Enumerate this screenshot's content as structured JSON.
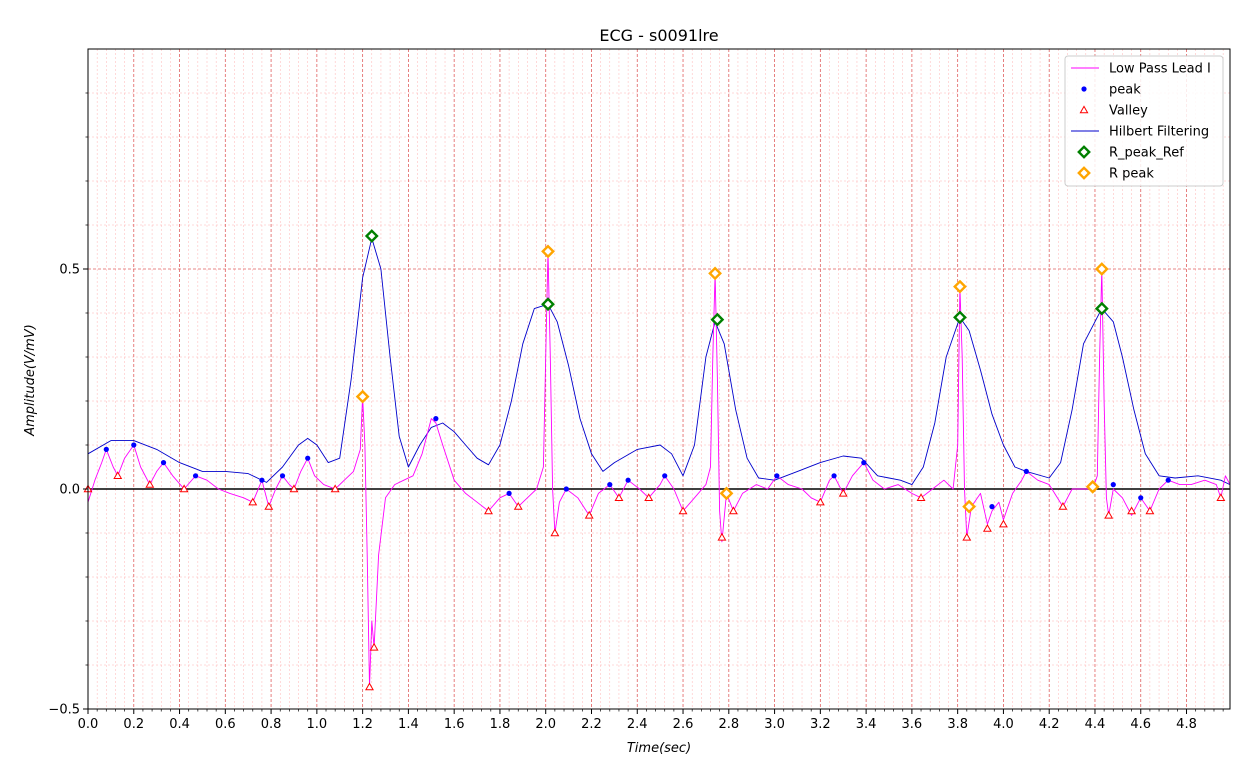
{
  "chart_data": {
    "type": "line",
    "title": "ECG - s0091lre",
    "xlabel": "Time(sec)",
    "ylabel": "Amplitude(V/mV)",
    "xlim": [
      0,
      4.99
    ],
    "ylim": [
      -0.5,
      1.0
    ],
    "x_ticks": [
      0.0,
      0.2,
      0.4,
      0.6,
      0.8,
      1.0,
      1.2,
      1.4,
      1.6,
      1.8,
      2.0,
      2.2,
      2.4,
      2.6,
      2.8,
      3.0,
      3.2,
      3.4,
      3.6,
      3.8,
      4.0,
      4.2,
      4.4,
      4.6,
      4.8
    ],
    "x_tick_labels": [
      "0.0",
      "0.2",
      "0.4",
      "0.6",
      "0.8",
      "1.0",
      "1.2",
      "1.4",
      "1.6",
      "1.8",
      "2.0",
      "2.2",
      "2.4",
      "2.6",
      "2.8",
      "3.0",
      "3.2",
      "3.4",
      "3.6",
      "3.8",
      "4.0",
      "4.2",
      "4.4",
      "4.6",
      "4.8"
    ],
    "y_ticks": [
      -0.5,
      0.0,
      0.5
    ],
    "y_tick_labels": [
      "−0.5",
      "0.0",
      "0.5"
    ],
    "grid": true,
    "zero_line": true,
    "legend_position": "top-right",
    "series": [
      {
        "name": "Low Pass Lead I",
        "kind": "line",
        "color": "#ff00ff",
        "points": [
          [
            0.0,
            -0.03
          ],
          [
            0.03,
            0.02
          ],
          [
            0.06,
            0.06
          ],
          [
            0.08,
            0.09
          ],
          [
            0.11,
            0.05
          ],
          [
            0.13,
            0.03
          ],
          [
            0.16,
            0.07
          ],
          [
            0.2,
            0.1
          ],
          [
            0.23,
            0.05
          ],
          [
            0.27,
            0.01
          ],
          [
            0.3,
            0.04
          ],
          [
            0.33,
            0.06
          ],
          [
            0.37,
            0.03
          ],
          [
            0.42,
            0.0
          ],
          [
            0.47,
            0.03
          ],
          [
            0.52,
            0.02
          ],
          [
            0.57,
            0.0
          ],
          [
            0.62,
            -0.01
          ],
          [
            0.68,
            -0.02
          ],
          [
            0.72,
            -0.03
          ],
          [
            0.76,
            0.02
          ],
          [
            0.79,
            -0.04
          ],
          [
            0.82,
            0.0
          ],
          [
            0.85,
            0.03
          ],
          [
            0.88,
            0.01
          ],
          [
            0.9,
            0.0
          ],
          [
            0.93,
            0.04
          ],
          [
            0.96,
            0.07
          ],
          [
            0.99,
            0.03
          ],
          [
            1.03,
            0.01
          ],
          [
            1.08,
            0.0
          ],
          [
            1.12,
            0.02
          ],
          [
            1.16,
            0.04
          ],
          [
            1.19,
            0.09
          ],
          [
            1.2,
            0.21
          ],
          [
            1.21,
            0.1
          ],
          [
            1.22,
            -0.15
          ],
          [
            1.23,
            -0.45
          ],
          [
            1.24,
            -0.3
          ],
          [
            1.25,
            -0.36
          ],
          [
            1.27,
            -0.15
          ],
          [
            1.3,
            -0.02
          ],
          [
            1.34,
            0.01
          ],
          [
            1.38,
            0.02
          ],
          [
            1.42,
            0.03
          ],
          [
            1.46,
            0.08
          ],
          [
            1.5,
            0.16
          ],
          [
            1.52,
            0.15
          ],
          [
            1.55,
            0.1
          ],
          [
            1.6,
            0.02
          ],
          [
            1.65,
            -0.01
          ],
          [
            1.7,
            -0.03
          ],
          [
            1.75,
            -0.05
          ],
          [
            1.8,
            -0.02
          ],
          [
            1.84,
            -0.01
          ],
          [
            1.88,
            -0.04
          ],
          [
            1.92,
            -0.02
          ],
          [
            1.96,
            0.0
          ],
          [
            1.99,
            0.05
          ],
          [
            2.0,
            0.3
          ],
          [
            2.01,
            0.54
          ],
          [
            2.02,
            0.3
          ],
          [
            2.03,
            0.0
          ],
          [
            2.04,
            -0.1
          ],
          [
            2.06,
            -0.03
          ],
          [
            2.09,
            0.0
          ],
          [
            2.14,
            -0.02
          ],
          [
            2.19,
            -0.06
          ],
          [
            2.23,
            -0.01
          ],
          [
            2.28,
            0.01
          ],
          [
            2.32,
            -0.02
          ],
          [
            2.36,
            0.02
          ],
          [
            2.41,
            0.0
          ],
          [
            2.45,
            -0.02
          ],
          [
            2.5,
            0.01
          ],
          [
            2.52,
            0.03
          ],
          [
            2.56,
            0.0
          ],
          [
            2.6,
            -0.05
          ],
          [
            2.65,
            -0.02
          ],
          [
            2.7,
            0.01
          ],
          [
            2.72,
            0.05
          ],
          [
            2.73,
            0.3
          ],
          [
            2.74,
            0.49
          ],
          [
            2.75,
            0.25
          ],
          [
            2.76,
            -0.05
          ],
          [
            2.77,
            -0.12
          ],
          [
            2.79,
            -0.01
          ],
          [
            2.82,
            -0.05
          ],
          [
            2.86,
            -0.01
          ],
          [
            2.92,
            0.01
          ],
          [
            2.97,
            0.0
          ],
          [
            3.01,
            0.03
          ],
          [
            3.06,
            0.01
          ],
          [
            3.12,
            0.0
          ],
          [
            3.16,
            -0.02
          ],
          [
            3.2,
            -0.03
          ],
          [
            3.24,
            0.02
          ],
          [
            3.26,
            0.03
          ],
          [
            3.3,
            -0.01
          ],
          [
            3.34,
            0.03
          ],
          [
            3.39,
            0.06
          ],
          [
            3.43,
            0.02
          ],
          [
            3.48,
            0.0
          ],
          [
            3.54,
            0.01
          ],
          [
            3.6,
            -0.01
          ],
          [
            3.64,
            -0.02
          ],
          [
            3.69,
            0.0
          ],
          [
            3.74,
            0.02
          ],
          [
            3.78,
            0.0
          ],
          [
            3.8,
            0.1
          ],
          [
            3.81,
            0.46
          ],
          [
            3.82,
            0.3
          ],
          [
            3.83,
            0.0
          ],
          [
            3.84,
            -0.11
          ],
          [
            3.86,
            -0.04
          ],
          [
            3.9,
            -0.01
          ],
          [
            3.93,
            -0.08
          ],
          [
            3.95,
            -0.05
          ],
          [
            3.98,
            -0.03
          ],
          [
            4.0,
            -0.07
          ],
          [
            4.04,
            -0.01
          ],
          [
            4.08,
            0.02
          ],
          [
            4.1,
            0.04
          ],
          [
            4.15,
            0.02
          ],
          [
            4.2,
            0.01
          ],
          [
            4.26,
            -0.04
          ],
          [
            4.3,
            0.0
          ],
          [
            4.35,
            0.0
          ],
          [
            4.39,
            0.0
          ],
          [
            4.41,
            0.03
          ],
          [
            4.42,
            0.3
          ],
          [
            4.43,
            0.5
          ],
          [
            4.44,
            0.2
          ],
          [
            4.45,
            -0.02
          ],
          [
            4.46,
            -0.06
          ],
          [
            4.48,
            0.0
          ],
          [
            4.52,
            -0.02
          ],
          [
            4.56,
            -0.06
          ],
          [
            4.6,
            -0.02
          ],
          [
            4.64,
            -0.05
          ],
          [
            4.68,
            0.0
          ],
          [
            4.72,
            0.02
          ],
          [
            4.77,
            0.01
          ],
          [
            4.82,
            0.01
          ],
          [
            4.88,
            0.02
          ],
          [
            4.93,
            0.01
          ],
          [
            4.95,
            -0.02
          ],
          [
            4.97,
            0.03
          ],
          [
            4.99,
            0.01
          ]
        ]
      },
      {
        "name": "peak",
        "kind": "scatter",
        "marker": "dot",
        "color": "#0000ff",
        "points": [
          [
            0.08,
            0.09
          ],
          [
            0.2,
            0.1
          ],
          [
            0.33,
            0.06
          ],
          [
            0.47,
            0.03
          ],
          [
            0.76,
            0.02
          ],
          [
            0.85,
            0.03
          ],
          [
            0.96,
            0.07
          ],
          [
            1.52,
            0.16
          ],
          [
            1.84,
            -0.01
          ],
          [
            2.09,
            0.0
          ],
          [
            2.28,
            0.01
          ],
          [
            2.36,
            0.02
          ],
          [
            2.52,
            0.03
          ],
          [
            3.01,
            0.03
          ],
          [
            3.26,
            0.03
          ],
          [
            3.39,
            0.06
          ],
          [
            3.95,
            -0.04
          ],
          [
            4.1,
            0.04
          ],
          [
            4.48,
            0.01
          ],
          [
            4.6,
            -0.02
          ],
          [
            4.72,
            0.02
          ]
        ]
      },
      {
        "name": "Valley",
        "kind": "scatter",
        "marker": "triangle",
        "color": "#ff0000",
        "points": [
          [
            0.0,
            0.0
          ],
          [
            0.13,
            0.03
          ],
          [
            0.27,
            0.01
          ],
          [
            0.42,
            0.0
          ],
          [
            0.72,
            -0.03
          ],
          [
            0.79,
            -0.04
          ],
          [
            0.9,
            0.0
          ],
          [
            1.08,
            0.0
          ],
          [
            1.23,
            -0.45
          ],
          [
            1.25,
            -0.36
          ],
          [
            1.75,
            -0.05
          ],
          [
            1.88,
            -0.04
          ],
          [
            2.04,
            -0.1
          ],
          [
            2.19,
            -0.06
          ],
          [
            2.32,
            -0.02
          ],
          [
            2.45,
            -0.02
          ],
          [
            2.6,
            -0.05
          ],
          [
            2.77,
            -0.11
          ],
          [
            2.82,
            -0.05
          ],
          [
            3.2,
            -0.03
          ],
          [
            3.3,
            -0.01
          ],
          [
            3.64,
            -0.02
          ],
          [
            3.84,
            -0.11
          ],
          [
            3.93,
            -0.09
          ],
          [
            4.0,
            -0.08
          ],
          [
            4.26,
            -0.04
          ],
          [
            4.46,
            -0.06
          ],
          [
            4.56,
            -0.05
          ],
          [
            4.64,
            -0.05
          ],
          [
            4.95,
            -0.02
          ]
        ]
      },
      {
        "name": "Hilbert Filtering",
        "kind": "line",
        "color": "#0000cc",
        "points": [
          [
            0.0,
            0.08
          ],
          [
            0.1,
            0.11
          ],
          [
            0.2,
            0.11
          ],
          [
            0.3,
            0.09
          ],
          [
            0.4,
            0.06
          ],
          [
            0.5,
            0.04
          ],
          [
            0.6,
            0.04
          ],
          [
            0.7,
            0.035
          ],
          [
            0.78,
            0.015
          ],
          [
            0.85,
            0.05
          ],
          [
            0.92,
            0.1
          ],
          [
            0.96,
            0.115
          ],
          [
            1.0,
            0.1
          ],
          [
            1.05,
            0.06
          ],
          [
            1.1,
            0.07
          ],
          [
            1.15,
            0.25
          ],
          [
            1.2,
            0.48
          ],
          [
            1.24,
            0.57
          ],
          [
            1.28,
            0.5
          ],
          [
            1.32,
            0.3
          ],
          [
            1.36,
            0.12
          ],
          [
            1.4,
            0.05
          ],
          [
            1.45,
            0.1
          ],
          [
            1.5,
            0.14
          ],
          [
            1.55,
            0.15
          ],
          [
            1.6,
            0.13
          ],
          [
            1.65,
            0.1
          ],
          [
            1.7,
            0.07
          ],
          [
            1.75,
            0.055
          ],
          [
            1.8,
            0.1
          ],
          [
            1.85,
            0.2
          ],
          [
            1.9,
            0.33
          ],
          [
            1.95,
            0.41
          ],
          [
            2.01,
            0.42
          ],
          [
            2.05,
            0.38
          ],
          [
            2.1,
            0.28
          ],
          [
            2.15,
            0.16
          ],
          [
            2.2,
            0.08
          ],
          [
            2.25,
            0.04
          ],
          [
            2.3,
            0.06
          ],
          [
            2.4,
            0.09
          ],
          [
            2.5,
            0.1
          ],
          [
            2.55,
            0.08
          ],
          [
            2.6,
            0.03
          ],
          [
            2.65,
            0.1
          ],
          [
            2.7,
            0.3
          ],
          [
            2.74,
            0.38
          ],
          [
            2.78,
            0.33
          ],
          [
            2.83,
            0.18
          ],
          [
            2.88,
            0.07
          ],
          [
            2.93,
            0.025
          ],
          [
            3.0,
            0.02
          ],
          [
            3.1,
            0.04
          ],
          [
            3.2,
            0.06
          ],
          [
            3.3,
            0.075
          ],
          [
            3.38,
            0.07
          ],
          [
            3.45,
            0.03
          ],
          [
            3.5,
            0.025
          ],
          [
            3.55,
            0.02
          ],
          [
            3.6,
            0.01
          ],
          [
            3.65,
            0.05
          ],
          [
            3.7,
            0.15
          ],
          [
            3.75,
            0.3
          ],
          [
            3.81,
            0.39
          ],
          [
            3.85,
            0.36
          ],
          [
            3.9,
            0.27
          ],
          [
            3.95,
            0.17
          ],
          [
            4.0,
            0.1
          ],
          [
            4.05,
            0.05
          ],
          [
            4.1,
            0.04
          ],
          [
            4.2,
            0.025
          ],
          [
            4.25,
            0.06
          ],
          [
            4.3,
            0.18
          ],
          [
            4.35,
            0.33
          ],
          [
            4.43,
            0.41
          ],
          [
            4.48,
            0.38
          ],
          [
            4.52,
            0.3
          ],
          [
            4.57,
            0.18
          ],
          [
            4.62,
            0.08
          ],
          [
            4.68,
            0.03
          ],
          [
            4.75,
            0.025
          ],
          [
            4.85,
            0.03
          ],
          [
            4.95,
            0.02
          ],
          [
            4.99,
            0.01
          ]
        ]
      },
      {
        "name": "R_peak_Ref",
        "kind": "scatter",
        "marker": "diamond",
        "color": "#008000",
        "points": [
          [
            1.24,
            0.575
          ],
          [
            2.01,
            0.42
          ],
          [
            2.75,
            0.385
          ],
          [
            3.81,
            0.39
          ],
          [
            4.43,
            0.41
          ]
        ]
      },
      {
        "name": "R peak",
        "kind": "scatter",
        "marker": "diamond",
        "color": "#ffa500",
        "points": [
          [
            1.2,
            0.21
          ],
          [
            2.01,
            0.54
          ],
          [
            2.74,
            0.49
          ],
          [
            2.79,
            -0.01
          ],
          [
            3.81,
            0.46
          ],
          [
            3.85,
            -0.04
          ],
          [
            4.39,
            0.005
          ],
          [
            4.43,
            0.5
          ]
        ]
      }
    ]
  }
}
